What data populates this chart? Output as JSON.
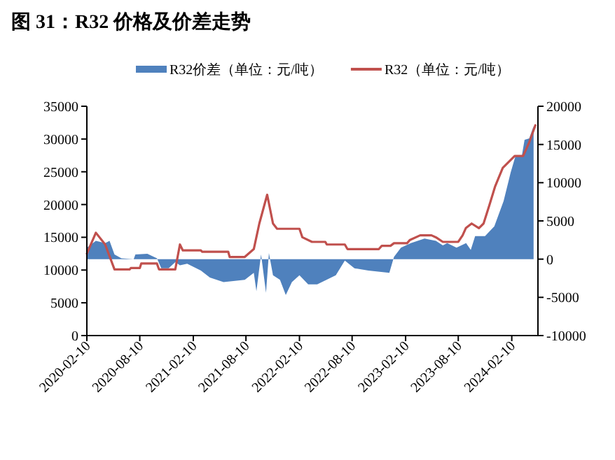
{
  "chart_data": {
    "type": "line",
    "title": "图 31：R32 价格及价差走势",
    "legend": "top",
    "grid": false,
    "xlim": [
      "2020-02-10",
      "2024-05-10"
    ],
    "xticks": [
      "2020-02-10",
      "2020-08-10",
      "2021-02-10",
      "2021-08-10",
      "2022-02-10",
      "2022-08-10",
      "2023-02-10",
      "2023-08-10",
      "2024-02-10"
    ],
    "ylim": [
      0,
      35000
    ],
    "yticks": [
      0,
      5000,
      10000,
      15000,
      20000,
      25000,
      30000,
      35000
    ],
    "y2lim": [
      -10000,
      20000
    ],
    "y2ticks": [
      -10000,
      -5000,
      0,
      5000,
      10000,
      15000,
      20000
    ],
    "series": [
      {
        "name": "R32价差（单位：元/吨）",
        "type": "area",
        "axis": "y2",
        "color": "#4f81bd",
        "x": [
          "2020-02-10",
          "2020-03-12",
          "2020-04-13",
          "2020-04-28",
          "2020-05-15",
          "2020-06-08",
          "2020-07-20",
          "2020-07-26",
          "2020-09-05",
          "2020-10-08",
          "2020-10-23",
          "2020-11-17",
          "2020-12-10",
          "2020-12-26",
          "2021-01-20",
          "2021-03-08",
          "2021-04-08",
          "2021-05-25",
          "2021-08-06",
          "2021-09-06",
          "2021-09-15",
          "2021-10-01",
          "2021-10-18",
          "2021-10-28",
          "2021-11-11",
          "2021-12-05",
          "2021-12-25",
          "2022-01-15",
          "2022-02-10",
          "2022-03-12",
          "2022-04-12",
          "2022-05-14",
          "2022-06-15",
          "2022-07-16",
          "2022-08-18",
          "2022-10-05",
          "2022-12-16",
          "2023-01-01",
          "2023-01-25",
          "2023-02-28",
          "2023-04-16",
          "2023-05-25",
          "2023-06-18",
          "2023-07-03",
          "2023-08-04",
          "2023-09-06",
          "2023-09-22",
          "2023-10-07",
          "2023-11-10",
          "2023-12-12",
          "2024-01-13",
          "2024-02-06",
          "2024-02-22",
          "2024-03-16",
          "2024-03-25",
          "2024-04-10",
          "2024-04-25"
        ],
        "values": [
          1500,
          2400,
          2100,
          2400,
          600,
          100,
          0,
          600,
          700,
          100,
          -1200,
          -1200,
          -400,
          -800,
          -600,
          -1500,
          -2400,
          -3000,
          -2700,
          -1800,
          -4200,
          600,
          -4400,
          800,
          -2100,
          -2700,
          -4700,
          -3000,
          -2100,
          -3300,
          -3300,
          -2700,
          -2100,
          -200,
          -1200,
          -1500,
          -1800,
          300,
          1500,
          2100,
          2700,
          2400,
          1800,
          2100,
          1500,
          2100,
          1200,
          3000,
          3000,
          4300,
          7600,
          11300,
          13400,
          13600,
          15600,
          15800,
          17400
        ]
      },
      {
        "name": "R32（单位：元/吨）",
        "color": "#c0504d",
        "x": [
          "2020-02-10",
          "2020-03-12",
          "2020-04-13",
          "2020-05-15",
          "2020-07-06",
          "2020-07-10",
          "2020-08-10",
          "2020-08-15",
          "2020-10-08",
          "2020-10-15",
          "2020-12-10",
          "2020-12-26",
          "2021-01-05",
          "2021-03-08",
          "2021-03-12",
          "2021-06-10",
          "2021-06-15",
          "2021-08-06",
          "2021-09-06",
          "2021-09-25",
          "2021-10-22",
          "2021-11-11",
          "2021-11-25",
          "2022-02-10",
          "2022-02-20",
          "2022-03-25",
          "2022-05-10",
          "2022-05-15",
          "2022-07-16",
          "2022-07-25",
          "2022-11-10",
          "2022-11-20",
          "2022-12-20",
          "2023-01-01",
          "2023-02-15",
          "2023-02-25",
          "2023-04-01",
          "2023-05-10",
          "2023-05-25",
          "2023-06-18",
          "2023-08-10",
          "2023-08-25",
          "2023-09-05",
          "2023-09-25",
          "2023-10-20",
          "2023-11-05",
          "2023-11-25",
          "2023-12-15",
          "2024-01-10",
          "2024-02-20",
          "2024-03-20",
          "2024-04-10",
          "2024-05-01"
        ],
        "values": [
          12500,
          15700,
          13900,
          10100,
          10100,
          10300,
          10300,
          11000,
          11000,
          10100,
          10100,
          13900,
          13000,
          13000,
          12800,
          12800,
          12000,
          12000,
          13200,
          17100,
          21500,
          17100,
          16300,
          16300,
          15000,
          14300,
          14300,
          13900,
          13900,
          13200,
          13200,
          13700,
          13700,
          14100,
          14100,
          14600,
          15300,
          15300,
          15000,
          14300,
          14300,
          15300,
          16400,
          17100,
          16400,
          17100,
          19900,
          22800,
          25600,
          27400,
          27400,
          29500,
          32100
        ]
      }
    ]
  }
}
